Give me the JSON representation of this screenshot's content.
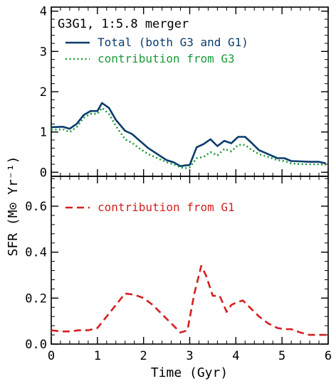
{
  "chart_data": [
    {
      "type": "line",
      "panel": "top",
      "title": "G3G1, 1:5.8 merger",
      "xlabel": "",
      "ylabel": "SFR (M⊙ Yr⁻¹)",
      "xlim": [
        0,
        6
      ],
      "ylim": [
        -0.1,
        4.1
      ],
      "yticks": [
        0,
        1,
        2,
        3,
        4
      ],
      "ytick_labels": [
        "0",
        "1",
        "2",
        "3",
        "4"
      ],
      "series": [
        {
          "name": "Total (both G3 and G1)",
          "style": "solid",
          "color": "#0b3c6b",
          "x": [
            0.0,
            0.25,
            0.4,
            0.55,
            0.7,
            0.85,
            1.0,
            1.1,
            1.25,
            1.4,
            1.6,
            1.75,
            1.9,
            2.1,
            2.3,
            2.5,
            2.65,
            2.8,
            2.9,
            3.0,
            3.15,
            3.3,
            3.45,
            3.6,
            3.75,
            3.9,
            4.05,
            4.2,
            4.35,
            4.5,
            4.7,
            4.9,
            5.05,
            5.2,
            5.4,
            5.6,
            5.8,
            5.95
          ],
          "y": [
            1.12,
            1.13,
            1.08,
            1.2,
            1.42,
            1.52,
            1.52,
            1.72,
            1.6,
            1.3,
            1.03,
            0.95,
            0.8,
            0.6,
            0.45,
            0.3,
            0.25,
            0.15,
            0.17,
            0.18,
            0.62,
            0.7,
            0.82,
            0.65,
            0.78,
            0.72,
            0.88,
            0.88,
            0.72,
            0.55,
            0.45,
            0.35,
            0.35,
            0.28,
            0.27,
            0.26,
            0.26,
            0.22
          ]
        },
        {
          "name": "contribution from G3",
          "style": "dotted",
          "color": "#1a9a3a",
          "x": [
            0.0,
            0.25,
            0.4,
            0.55,
            0.7,
            0.85,
            1.0,
            1.1,
            1.25,
            1.4,
            1.6,
            1.75,
            1.9,
            2.1,
            2.3,
            2.5,
            2.65,
            2.8,
            2.9,
            3.0,
            3.15,
            3.3,
            3.45,
            3.6,
            3.75,
            3.9,
            4.05,
            4.2,
            4.35,
            4.5,
            4.7,
            4.9,
            5.05,
            5.2,
            5.4,
            5.6,
            5.8,
            5.95
          ],
          "y": [
            1.05,
            1.07,
            1.0,
            1.12,
            1.35,
            1.45,
            1.45,
            1.6,
            1.45,
            1.15,
            0.82,
            0.73,
            0.6,
            0.45,
            0.35,
            0.25,
            0.2,
            0.12,
            0.1,
            0.12,
            0.35,
            0.38,
            0.5,
            0.42,
            0.58,
            0.52,
            0.68,
            0.68,
            0.55,
            0.45,
            0.38,
            0.3,
            0.28,
            0.22,
            0.2,
            0.2,
            0.2,
            0.18
          ]
        }
      ]
    },
    {
      "type": "line",
      "panel": "bottom",
      "title": "",
      "xlabel": "Time (Gyr)",
      "ylabel": "",
      "xlim": [
        0,
        6
      ],
      "ylim": [
        0.0,
        0.73
      ],
      "xticks": [
        0,
        1,
        2,
        3,
        4,
        5,
        6
      ],
      "xtick_labels": [
        "0",
        "1",
        "2",
        "3",
        "4",
        "5",
        "6"
      ],
      "yticks": [
        0.0,
        0.2,
        0.4,
        0.6
      ],
      "ytick_labels": [
        "0.0",
        "0.2",
        "0.4",
        "0.6"
      ],
      "series": [
        {
          "name": "contribution from G1",
          "style": "dashed",
          "color": "#d42020",
          "x": [
            0.0,
            0.2,
            0.4,
            0.6,
            0.8,
            1.0,
            1.2,
            1.4,
            1.6,
            1.8,
            2.0,
            2.2,
            2.4,
            2.6,
            2.8,
            2.95,
            3.1,
            3.25,
            3.35,
            3.5,
            3.65,
            3.8,
            3.9,
            4.0,
            4.15,
            4.3,
            4.5,
            4.7,
            4.9,
            5.05,
            5.2,
            5.4,
            5.6,
            5.8,
            6.0
          ],
          "y": [
            0.06,
            0.055,
            0.055,
            0.06,
            0.06,
            0.07,
            0.12,
            0.17,
            0.22,
            0.215,
            0.2,
            0.17,
            0.13,
            0.09,
            0.05,
            0.06,
            0.22,
            0.34,
            0.3,
            0.21,
            0.21,
            0.14,
            0.17,
            0.18,
            0.19,
            0.16,
            0.12,
            0.09,
            0.07,
            0.065,
            0.065,
            0.05,
            0.04,
            0.04,
            0.04
          ]
        }
      ]
    }
  ]
}
